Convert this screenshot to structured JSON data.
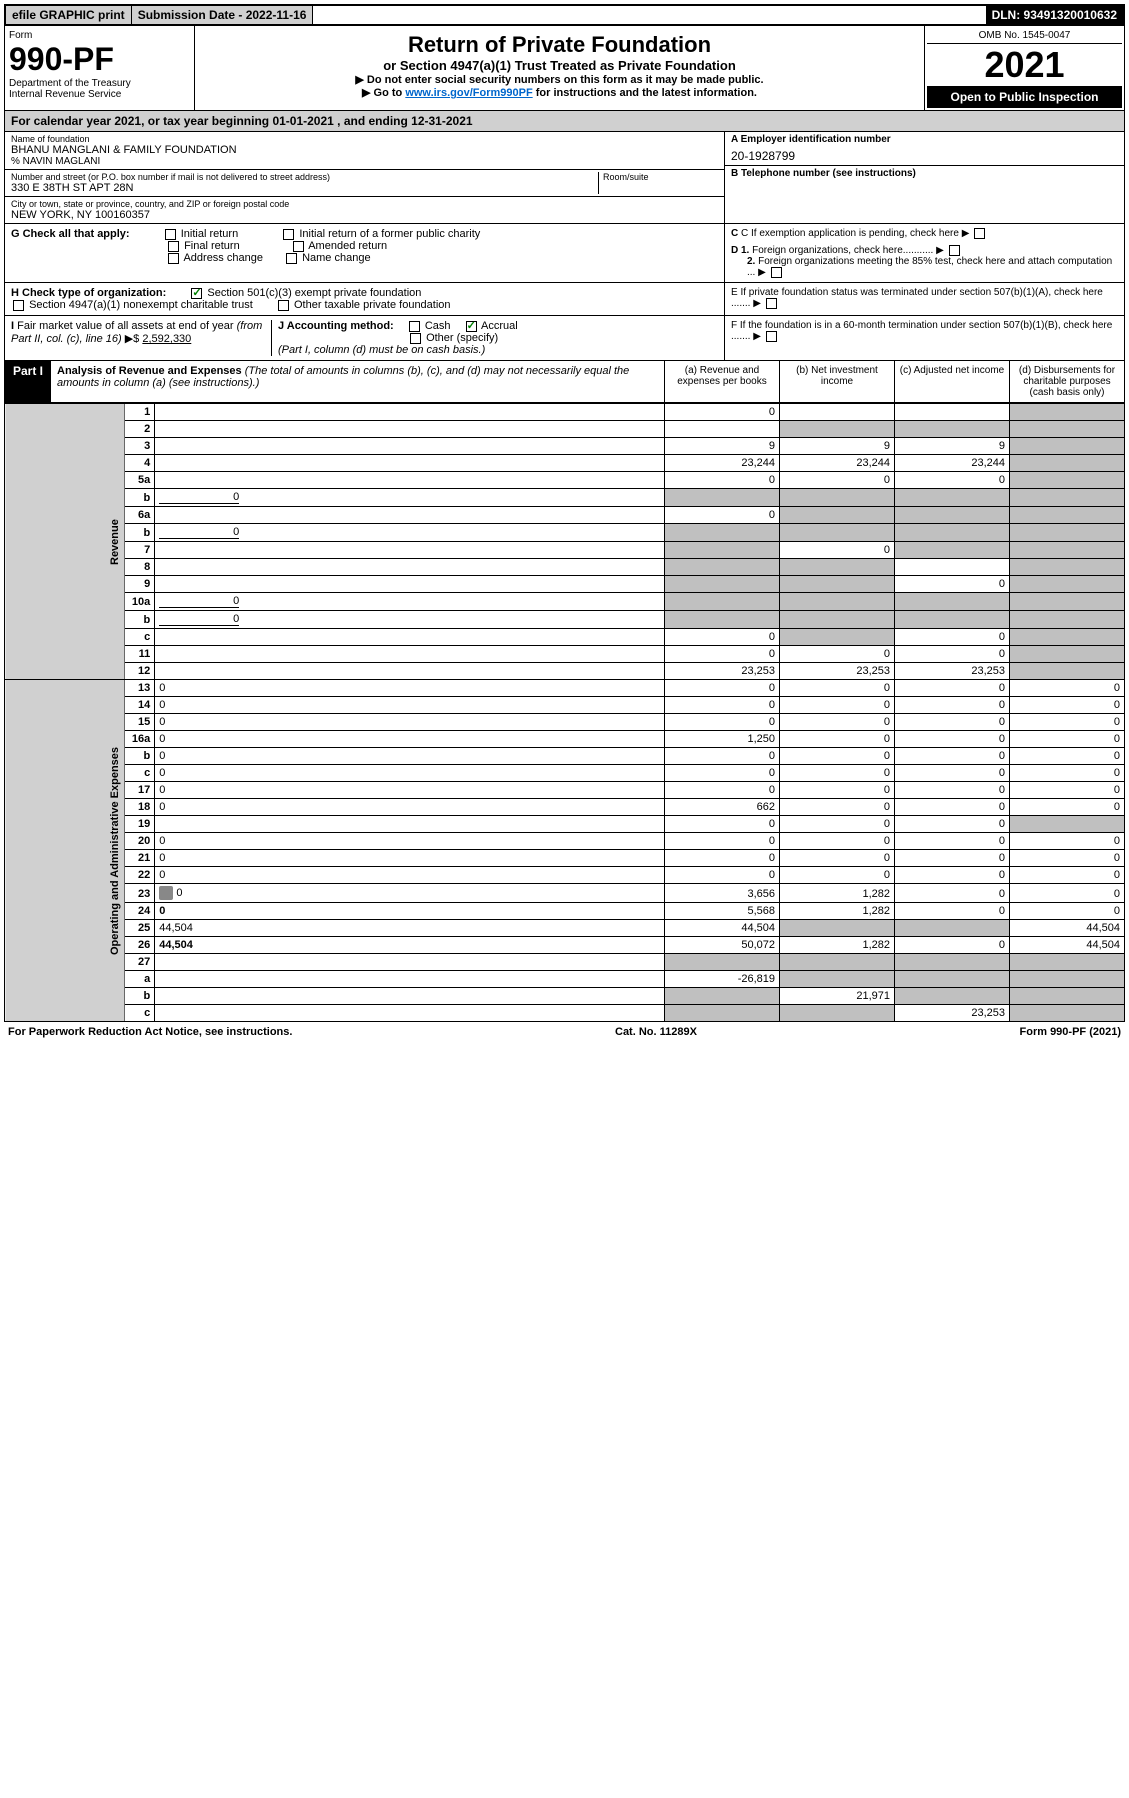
{
  "topbar": {
    "efile": "efile GRAPHIC print",
    "submission": "Submission Date - 2022-11-16",
    "dln": "DLN: 93491320010632"
  },
  "header": {
    "form_label": "Form",
    "form_no": "990-PF",
    "dept": "Department of the Treasury\nInternal Revenue Service",
    "title": "Return of Private Foundation",
    "subtitle": "or Section 4947(a)(1) Trust Treated as Private Foundation",
    "note1": "▶ Do not enter social security numbers on this form as it may be made public.",
    "note2_pre": "▶ Go to ",
    "note2_link": "www.irs.gov/Form990PF",
    "note2_post": " for instructions and the latest information.",
    "omb": "OMB No. 1545-0047",
    "year": "2021",
    "open": "Open to Public Inspection"
  },
  "calendar": "For calendar year 2021, or tax year beginning 01-01-2021                                , and ending 12-31-2021",
  "foundation": {
    "name_label": "Name of foundation",
    "name": "BHANU MANGLANI & FAMILY FOUNDATION",
    "care_of": "% NAVIN MAGLANI",
    "addr_label": "Number and street (or P.O. box number if mail is not delivered to street address)",
    "addr": "330 E 38TH ST APT 28N",
    "room_label": "Room/suite",
    "city_label": "City or town, state or province, country, and ZIP or foreign postal code",
    "city": "NEW YORK, NY  100160357",
    "ein_label": "A Employer identification number",
    "ein": "20-1928799",
    "phone_label": "B Telephone number (see instructions)",
    "c_label": "C If exemption application is pending, check here",
    "d1_label": "D 1. Foreign organizations, check here...........",
    "d2_label": "2. Foreign organizations meeting the 85% test, check here and attach computation ...",
    "e_label": "E  If private foundation status was terminated under section 507(b)(1)(A), check here .......",
    "f_label": "F  If the foundation is in a 60-month termination under section 507(b)(1)(B), check here ......."
  },
  "g": {
    "label": "G Check all that apply:",
    "opts": [
      "Initial return",
      "Final return",
      "Address change",
      "Initial return of a former public charity",
      "Amended return",
      "Name change"
    ]
  },
  "h": {
    "label": "H Check type of organization:",
    "opt1": "Section 501(c)(3) exempt private foundation",
    "opt2": "Section 4947(a)(1) nonexempt charitable trust",
    "opt3": "Other taxable private foundation"
  },
  "i": {
    "label": "I Fair market value of all assets at end of year (from Part II, col. (c), line 16) ▶$ ",
    "value": "2,592,330"
  },
  "j": {
    "label": "J Accounting method:",
    "cash": "Cash",
    "accrual": "Accrual",
    "other": "Other (specify)",
    "note": "(Part I, column (d) must be on cash basis.)"
  },
  "part1": {
    "label": "Part I",
    "title": "Analysis of Revenue and Expenses",
    "title_note": " (The total of amounts in columns (b), (c), and (d) may not necessarily equal the amounts in column (a) (see instructions).)",
    "col_a": "(a) Revenue and expenses per books",
    "col_b": "(b) Net investment income",
    "col_c": "(c) Adjusted net income",
    "col_d": "(d) Disbursements for charitable purposes (cash basis only)"
  },
  "side_labels": {
    "revenue": "Revenue",
    "expenses": "Operating and Administrative Expenses"
  },
  "rows": [
    {
      "n": "1",
      "d": "",
      "a": "0",
      "b": "",
      "c": "",
      "dg": true
    },
    {
      "n": "2",
      "d": "",
      "a": "",
      "b": "",
      "c": "",
      "bg": true,
      "cg": true,
      "dg": true,
      "bold_not": true
    },
    {
      "n": "3",
      "d": "",
      "a": "9",
      "b": "9",
      "c": "9",
      "dg": true
    },
    {
      "n": "4",
      "d": "",
      "a": "23,244",
      "b": "23,244",
      "c": "23,244",
      "dg": true
    },
    {
      "n": "5a",
      "d": "",
      "a": "0",
      "b": "0",
      "c": "0",
      "dg": true
    },
    {
      "n": "b",
      "d": "",
      "inline": "0",
      "a": "",
      "b": "",
      "c": "",
      "ag": true,
      "bg": true,
      "cg": true,
      "dg": true
    },
    {
      "n": "6a",
      "d": "",
      "a": "0",
      "b": "",
      "c": "",
      "bg": true,
      "cg": true,
      "dg": true
    },
    {
      "n": "b",
      "d": "",
      "inline": "0",
      "a": "",
      "b": "",
      "c": "",
      "ag": true,
      "bg": true,
      "cg": true,
      "dg": true
    },
    {
      "n": "7",
      "d": "",
      "a": "",
      "b": "0",
      "c": "",
      "ag": true,
      "cg": true,
      "dg": true
    },
    {
      "n": "8",
      "d": "",
      "a": "",
      "b": "",
      "c": "",
      "ag": true,
      "bg": true,
      "dg": true
    },
    {
      "n": "9",
      "d": "",
      "a": "",
      "b": "",
      "c": "0",
      "ag": true,
      "bg": true,
      "dg": true
    },
    {
      "n": "10a",
      "d": "",
      "inline": "0",
      "a": "",
      "b": "",
      "c": "",
      "ag": true,
      "bg": true,
      "cg": true,
      "dg": true
    },
    {
      "n": "b",
      "d": "",
      "inline": "0",
      "a": "",
      "b": "",
      "c": "",
      "ag": true,
      "bg": true,
      "cg": true,
      "dg": true
    },
    {
      "n": "c",
      "d": "",
      "a": "0",
      "b": "",
      "c": "0",
      "bg": true,
      "dg": true
    },
    {
      "n": "11",
      "d": "",
      "a": "0",
      "b": "0",
      "c": "0",
      "dg": true
    },
    {
      "n": "12",
      "d": "",
      "a": "23,253",
      "b": "23,253",
      "c": "23,253",
      "bold": true,
      "dg": true
    },
    {
      "n": "13",
      "d": "0",
      "a": "0",
      "b": "0",
      "c": "0"
    },
    {
      "n": "14",
      "d": "0",
      "a": "0",
      "b": "0",
      "c": "0"
    },
    {
      "n": "15",
      "d": "0",
      "a": "0",
      "b": "0",
      "c": "0"
    },
    {
      "n": "16a",
      "d": "0",
      "a": "1,250",
      "b": "0",
      "c": "0"
    },
    {
      "n": "b",
      "d": "0",
      "a": "0",
      "b": "0",
      "c": "0"
    },
    {
      "n": "c",
      "d": "0",
      "a": "0",
      "b": "0",
      "c": "0"
    },
    {
      "n": "17",
      "d": "0",
      "a": "0",
      "b": "0",
      "c": "0"
    },
    {
      "n": "18",
      "d": "0",
      "a": "662",
      "b": "0",
      "c": "0"
    },
    {
      "n": "19",
      "d": "",
      "a": "0",
      "b": "0",
      "c": "0",
      "dg": true
    },
    {
      "n": "20",
      "d": "0",
      "a": "0",
      "b": "0",
      "c": "0"
    },
    {
      "n": "21",
      "d": "0",
      "a": "0",
      "b": "0",
      "c": "0"
    },
    {
      "n": "22",
      "d": "0",
      "a": "0",
      "b": "0",
      "c": "0"
    },
    {
      "n": "23",
      "d": "0",
      "icon": true,
      "a": "3,656",
      "b": "1,282",
      "c": "0"
    },
    {
      "n": "24",
      "d": "0",
      "a": "5,568",
      "b": "1,282",
      "c": "0",
      "bold": true
    },
    {
      "n": "25",
      "d": "44,504",
      "a": "44,504",
      "b": "",
      "c": "",
      "bg": true,
      "cg": true
    },
    {
      "n": "26",
      "d": "44,504",
      "a": "50,072",
      "b": "1,282",
      "c": "0",
      "bold": true
    },
    {
      "n": "27",
      "d": "",
      "a": "",
      "b": "",
      "c": "",
      "ag": true,
      "bg": true,
      "cg": true,
      "dg": true
    },
    {
      "n": "a",
      "d": "",
      "a": "-26,819",
      "b": "",
      "c": "",
      "bold": true,
      "bg": true,
      "cg": true,
      "dg": true
    },
    {
      "n": "b",
      "d": "",
      "a": "",
      "b": "21,971",
      "c": "",
      "bold": true,
      "ag": true,
      "cg": true,
      "dg": true
    },
    {
      "n": "c",
      "d": "",
      "a": "",
      "b": "",
      "c": "23,253",
      "bold": true,
      "ag": true,
      "bg": true,
      "dg": true
    }
  ],
  "footer": {
    "left": "For Paperwork Reduction Act Notice, see instructions.",
    "mid": "Cat. No. 11289X",
    "right": "Form 990-PF (2021)"
  }
}
